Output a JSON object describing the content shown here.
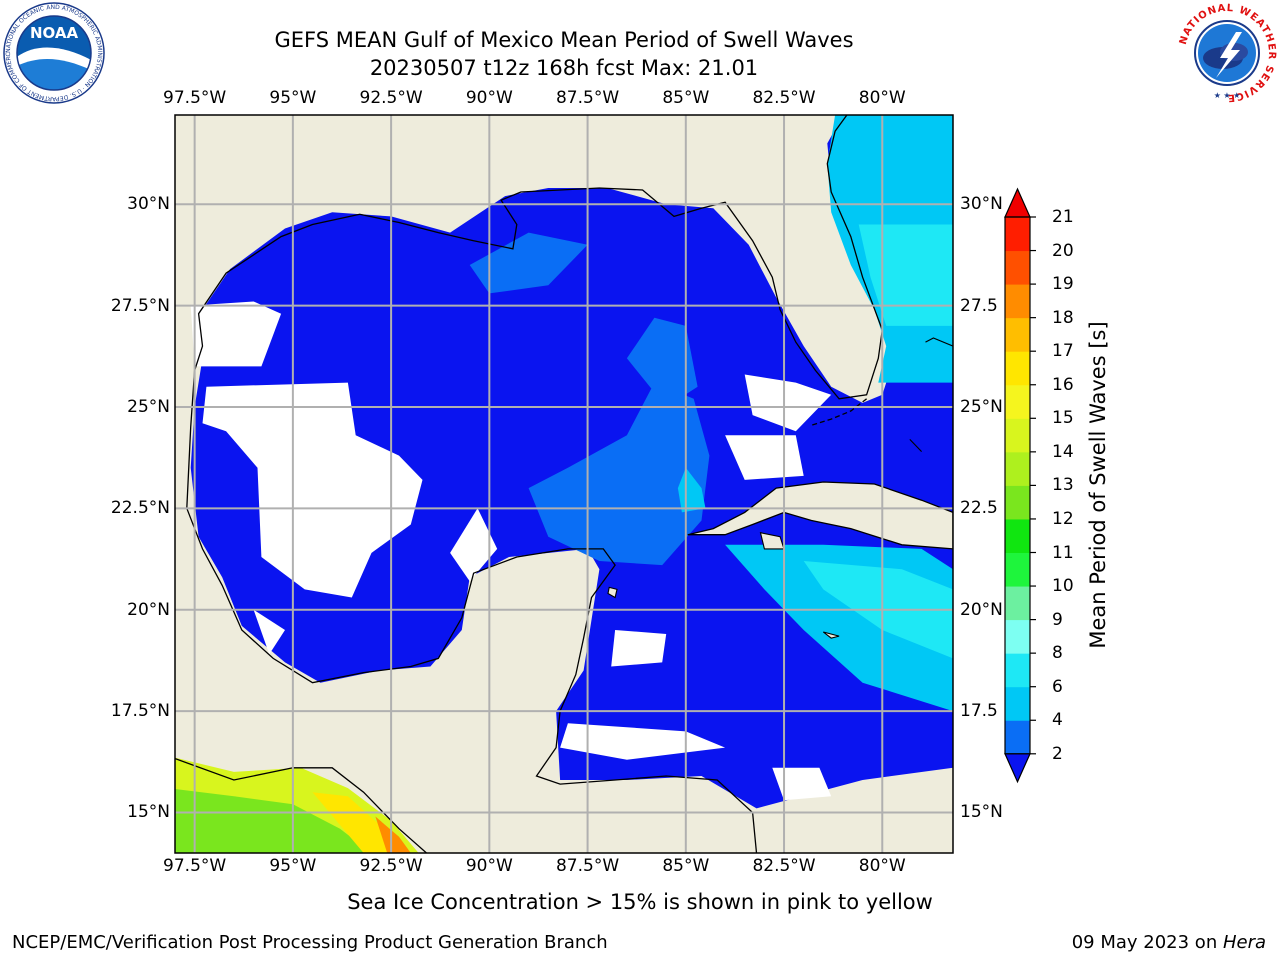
{
  "header": {
    "title_line1": "GEFS MEAN Gulf of Mexico Mean Period of Swell Waves",
    "title_line2": "20230507 t12z 168h fcst   Max: 21.01"
  },
  "logos": {
    "noaa_text": "NOAA",
    "noaa_ring_text": "NATIONAL OCEANIC AND ATMOSPHERIC ADMINISTRATION · U.S. DEPARTMENT OF COMMERCE",
    "nws_ring_text": "NATIONAL WEATHER SERVICE"
  },
  "axes": {
    "lon_ticks": [
      "97.5°W",
      "95°W",
      "92.5°W",
      "90°W",
      "87.5°W",
      "85°W",
      "82.5°W",
      "80°W"
    ],
    "lat_ticks_left": [
      "30°N",
      "27.5°N",
      "25°N",
      "22.5°N",
      "20°N",
      "17.5°N",
      "15°N"
    ],
    "lat_ticks_right": [
      "30°N",
      "27.5",
      "25°N",
      "22.5",
      "20°N",
      "17.5",
      "15°N"
    ],
    "lon_values": [
      -97.5,
      -95,
      -92.5,
      -90,
      -87.5,
      -85,
      -82.5,
      -80
    ],
    "lat_values": [
      30,
      27.5,
      25,
      22.5,
      20,
      17.5,
      15
    ],
    "lon_range": [
      -98,
      -78.2
    ],
    "lat_range": [
      14,
      32.2
    ],
    "grid": true
  },
  "colorbar": {
    "label": "Mean Period of Swell Waves [s]",
    "ticks": [
      "2",
      "4",
      "6",
      "8",
      "9",
      "10",
      "11",
      "12",
      "13",
      "14",
      "15",
      "16",
      "17",
      "18",
      "19",
      "20",
      "21"
    ],
    "extend": "both",
    "colors": [
      "#0a14f0",
      "#0a6ef5",
      "#00c8f5",
      "#1ee8f5",
      "#7dfff2",
      "#6cf0a0",
      "#1ef53c",
      "#10e610",
      "#7ae61e",
      "#aef01e",
      "#d8f51e",
      "#f5f51e",
      "#ffe600",
      "#ffbe00",
      "#ff8c00",
      "#ff5000",
      "#ff1e00",
      "#f00000"
    ],
    "under_color": "#0a14f0",
    "over_color": "#f00000"
  },
  "map": {
    "land_color": "#eeecdc",
    "nodata_color": "#ffffff"
  },
  "footer": {
    "note": "Sea Ice Concentration > 15% is shown in pink to yellow",
    "credit": "NCEP/EMC/Verification Post Processing Product Generation Branch",
    "date_prefix": "09 May 2023 on ",
    "machine": "Hera"
  }
}
